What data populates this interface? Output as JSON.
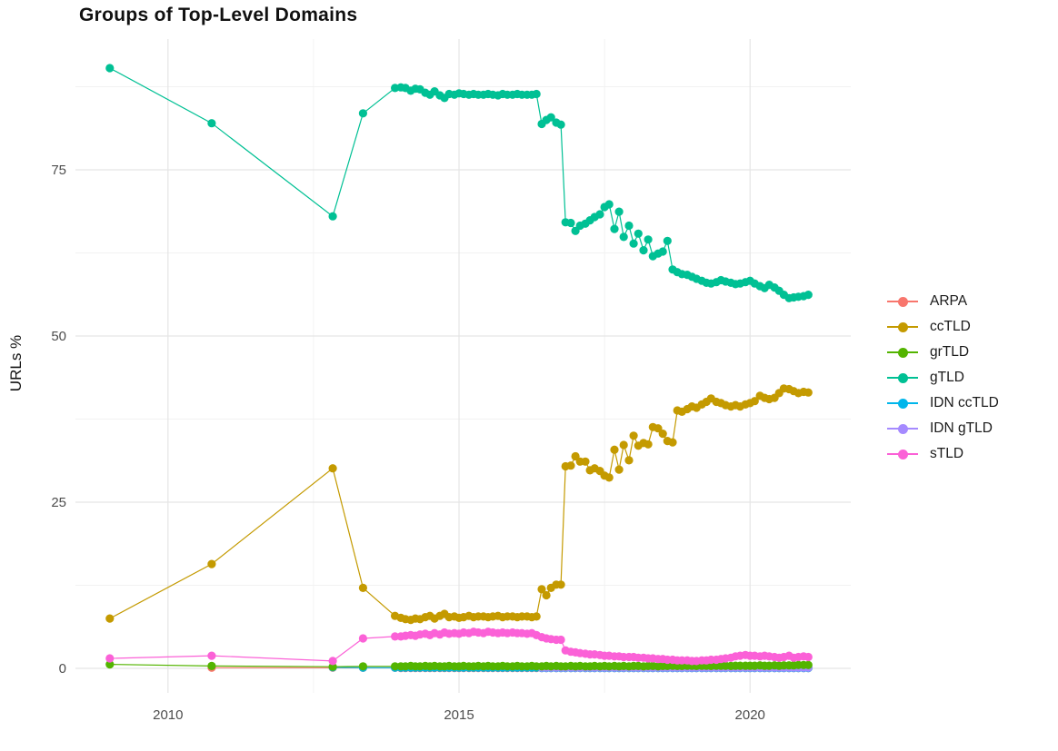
{
  "title": "Groups of Top-Level Domains",
  "chart_data": {
    "type": "line",
    "title": "Groups of Top-Level Domains",
    "xlabel": "",
    "ylabel": "URLs %",
    "grid": true,
    "legend_position": "right",
    "x_ticks": [
      "2010",
      "2015",
      "2020"
    ],
    "x_tick_values": [
      2010,
      2015,
      2020
    ],
    "x_minor": [
      2012.5,
      2017.5
    ],
    "y_ticks": [
      "0",
      "25",
      "50",
      "75"
    ],
    "y_tick_values": [
      0,
      25,
      50,
      75
    ],
    "y_minor": [
      12.5,
      37.5,
      62.5,
      87.5
    ],
    "xlim": [
      2008.41,
      2021.73
    ],
    "ylim": [
      -3.69,
      94.67
    ],
    "x": [
      2009,
      2010.75,
      2012.83,
      2013.35,
      2013.9,
      2014,
      2014.08,
      2014.17,
      2014.25,
      2014.33,
      2014.42,
      2014.5,
      2014.58,
      2014.67,
      2014.75,
      2014.83,
      2014.92,
      2015,
      2015.08,
      2015.17,
      2015.25,
      2015.33,
      2015.42,
      2015.5,
      2015.58,
      2015.67,
      2015.75,
      2015.83,
      2015.92,
      2016,
      2016.08,
      2016.17,
      2016.25,
      2016.33,
      2016.42,
      2016.5,
      2016.58,
      2016.67,
      2016.75,
      2016.83,
      2016.92,
      2017,
      2017.08,
      2017.17,
      2017.25,
      2017.33,
      2017.42,
      2017.5,
      2017.58,
      2017.67,
      2017.75,
      2017.83,
      2017.92,
      2018,
      2018.08,
      2018.17,
      2018.25,
      2018.33,
      2018.42,
      2018.5,
      2018.58,
      2018.67,
      2018.75,
      2018.83,
      2018.92,
      2019,
      2019.08,
      2019.17,
      2019.25,
      2019.33,
      2019.42,
      2019.5,
      2019.58,
      2019.67,
      2019.75,
      2019.83,
      2019.92,
      2020,
      2020.08,
      2020.17,
      2020.25,
      2020.33,
      2020.42,
      2020.5,
      2020.58,
      2020.67,
      2020.75,
      2020.83,
      2020.92,
      2021
    ],
    "draw_order": [
      "ARPA",
      "IDN ccTLD",
      "IDN gTLD",
      "grTLD",
      "ccTLD",
      "gTLD",
      "sTLD"
    ],
    "series": [
      {
        "name": "ARPA",
        "color": "#F8766D",
        "values": [
          null,
          0.1,
          0.1,
          0.08,
          0.08,
          0.05,
          0.05,
          0.05,
          0.05,
          0.05,
          0.05,
          0.05,
          0.05,
          0.05,
          0.05,
          0.05,
          0.05,
          0.05,
          0.05,
          0.05,
          0.05,
          0.05,
          0.05,
          0.05,
          0.05,
          0.05,
          0.05,
          0.05,
          0.05,
          0.05,
          0.05,
          0.05,
          0.05,
          0.05,
          0.05,
          0.05,
          0.05,
          0.05,
          0.05,
          0.05,
          0.05,
          0.05,
          0.05,
          0.05,
          0.05,
          0.05,
          0.05,
          0.05,
          0.05,
          0.05,
          0.05,
          0.05,
          0.05,
          0.05,
          0.05,
          0.05,
          0.05,
          0.05,
          0.05,
          0.05,
          0.05,
          0.05,
          0.05,
          0.05,
          0.05,
          0.05,
          0.05,
          0.05,
          0.05,
          0.05,
          0.05,
          0.05,
          0.05,
          0.05,
          0.05,
          0.05,
          0.05,
          0.05,
          0.05,
          0.05,
          0.05,
          0.05,
          0.05,
          0.05,
          0.05,
          0.05,
          0.05,
          0.05,
          0.05,
          0.05
        ]
      },
      {
        "name": "ccTLD",
        "color": "#C49A00",
        "values": [
          7.5,
          15.7,
          30.1,
          12.1,
          7.9,
          7.6,
          7.4,
          7.3,
          7.5,
          7.4,
          7.7,
          7.9,
          7.5,
          7.9,
          8.2,
          7.7,
          7.8,
          7.6,
          7.7,
          7.9,
          7.7,
          7.8,
          7.8,
          7.7,
          7.8,
          7.9,
          7.7,
          7.8,
          7.8,
          7.7,
          7.8,
          7.8,
          7.7,
          7.8,
          11.9,
          11,
          12.1,
          12.6,
          12.6,
          30.4,
          30.5,
          31.9,
          31.1,
          31.1,
          29.8,
          30.1,
          29.7,
          29,
          28.7,
          32.9,
          29.9,
          33.6,
          31.3,
          35,
          33.5,
          33.9,
          33.7,
          36.3,
          36.1,
          35.3,
          34.2,
          34,
          38.8,
          38.6,
          39,
          39.4,
          39.2,
          39.7,
          40.1,
          40.6,
          40.1,
          39.9,
          39.6,
          39.4,
          39.6,
          39.4,
          39.7,
          39.9,
          40.2,
          41,
          40.7,
          40.5,
          40.7,
          41.4,
          42.1,
          42,
          41.7,
          41.4,
          41.6,
          41.5
        ]
      },
      {
        "name": "grTLD",
        "color": "#53B400",
        "values": [
          0.6,
          0.35,
          0.25,
          0.3,
          0.3,
          0.3,
          0.3,
          0.35,
          0.3,
          0.3,
          0.35,
          0.3,
          0.35,
          0.3,
          0.3,
          0.35,
          0.3,
          0.3,
          0.35,
          0.3,
          0.3,
          0.35,
          0.3,
          0.35,
          0.3,
          0.3,
          0.35,
          0.3,
          0.3,
          0.35,
          0.3,
          0.3,
          0.35,
          0.3,
          0.3,
          0.35,
          0.3,
          0.35,
          0.3,
          0.3,
          0.35,
          0.3,
          0.35,
          0.3,
          0.3,
          0.35,
          0.3,
          0.35,
          0.3,
          0.35,
          0.3,
          0.35,
          0.3,
          0.35,
          0.35,
          0.3,
          0.35,
          0.35,
          0.3,
          0.35,
          0.35,
          0.4,
          0.35,
          0.35,
          0.4,
          0.4,
          0.35,
          0.4,
          0.4,
          0.35,
          0.4,
          0.4,
          0.4,
          0.35,
          0.4,
          0.4,
          0.4,
          0.4,
          0.4,
          0.45,
          0.4,
          0.4,
          0.45,
          0.4,
          0.45,
          0.45,
          0.45,
          0.5,
          0.5,
          0.5
        ]
      },
      {
        "name": "gTLD",
        "color": "#00C094",
        "values": [
          90.3,
          82,
          68,
          83.5,
          87.3,
          87.4,
          87.3,
          86.9,
          87.2,
          87.1,
          86.6,
          86.3,
          86.8,
          86.2,
          85.8,
          86.4,
          86.3,
          86.5,
          86.4,
          86.3,
          86.4,
          86.3,
          86.3,
          86.4,
          86.3,
          86.2,
          86.4,
          86.3,
          86.3,
          86.4,
          86.3,
          86.3,
          86.3,
          86.4,
          81.9,
          82.5,
          82.9,
          82.1,
          81.8,
          67.1,
          67,
          65.8,
          66.6,
          66.9,
          67.4,
          67.9,
          68.3,
          69.4,
          69.8,
          66.1,
          68.7,
          64.9,
          66.6,
          63.9,
          65.4,
          62.9,
          64.5,
          62,
          62.4,
          62.7,
          64.3,
          60,
          59.6,
          59.3,
          59.2,
          58.9,
          58.6,
          58.3,
          58,
          57.9,
          58.1,
          58.4,
          58.2,
          58,
          57.8,
          57.9,
          58.1,
          58.3,
          57.9,
          57.5,
          57.2,
          57.7,
          57.3,
          56.8,
          56.2,
          55.7,
          55.8,
          55.9,
          56,
          56.2
        ]
      },
      {
        "name": "IDN ccTLD",
        "color": "#00B6EB",
        "values": [
          null,
          null,
          0.15,
          0.1,
          0.1,
          0.1,
          0.1,
          0.1,
          0.1,
          0.1,
          0.1,
          0.1,
          0.1,
          0.1,
          0.1,
          0.1,
          0.1,
          0.1,
          0.1,
          0.1,
          0.1,
          0.1,
          0.1,
          0.1,
          0.1,
          0.1,
          0.1,
          0.1,
          0.1,
          0.1,
          0.1,
          0.1,
          0.1,
          0.1,
          0.05,
          0.05,
          0.05,
          0.05,
          0.05,
          0.05,
          0.05,
          0.05,
          0.05,
          0.05,
          0.05,
          0.05,
          0.05,
          0.05,
          0.05,
          0.05,
          0.05,
          0.05,
          0.05,
          0.05,
          0.05,
          0.05,
          0.05,
          0.05,
          0.05,
          0.05,
          0.05,
          0.05,
          0.05,
          0.05,
          0.05,
          0.05,
          0.05,
          0.05,
          0.05,
          0.05,
          0.05,
          0.05,
          0.05,
          0.05,
          0.05,
          0.05,
          0.05,
          0.05,
          0.05,
          0.05,
          0.05,
          0.05,
          0.05,
          0.05,
          0.05,
          0.05,
          0.05,
          0.05,
          0.05,
          0.05
        ]
      },
      {
        "name": "IDN gTLD",
        "color": "#A58AFF",
        "values": [
          null,
          null,
          null,
          null,
          null,
          null,
          null,
          null,
          null,
          null,
          null,
          null,
          null,
          null,
          null,
          null,
          null,
          null,
          null,
          null,
          null,
          null,
          null,
          null,
          null,
          null,
          null,
          null,
          null,
          null,
          null,
          null,
          null,
          null,
          0.1,
          0.1,
          0.1,
          0.1,
          0.1,
          0.1,
          0.1,
          0.1,
          0.1,
          0.1,
          0.1,
          0.1,
          0.1,
          0.1,
          0.1,
          0.1,
          0.1,
          0.1,
          0.1,
          0.1,
          0.1,
          0.1,
          0.1,
          0.1,
          0.1,
          0.1,
          0.1,
          0.1,
          0.1,
          0.1,
          0.1,
          0.1,
          0.1,
          0.1,
          0.1,
          0.1,
          0.1,
          0.1,
          0.1,
          0.1,
          0.1,
          0.1,
          0.1,
          0.1,
          0.1,
          0.1,
          0.1,
          0.1,
          0.1,
          0.1,
          0.1,
          0.1,
          0.1,
          0.1,
          0.1,
          0.1
        ]
      },
      {
        "name": "sTLD",
        "color": "#FB61D7",
        "values": [
          1.5,
          1.9,
          1.1,
          4.5,
          4.8,
          4.8,
          4.9,
          5,
          4.9,
          5.1,
          5.2,
          5,
          5.3,
          5.1,
          5.4,
          5.2,
          5.3,
          5.2,
          5.4,
          5.3,
          5.5,
          5.4,
          5.3,
          5.5,
          5.4,
          5.3,
          5.4,
          5.3,
          5.4,
          5.3,
          5.3,
          5.2,
          5.3,
          5,
          4.7,
          4.5,
          4.4,
          4.3,
          4.3,
          2.7,
          2.5,
          2.4,
          2.3,
          2.2,
          2.1,
          2.1,
          2,
          1.9,
          1.9,
          1.8,
          1.8,
          1.7,
          1.7,
          1.7,
          1.6,
          1.6,
          1.5,
          1.5,
          1.4,
          1.4,
          1.3,
          1.3,
          1.2,
          1.2,
          1.2,
          1.1,
          1.1,
          1.2,
          1.2,
          1.3,
          1.3,
          1.4,
          1.5,
          1.6,
          1.8,
          1.9,
          2,
          1.9,
          1.9,
          1.8,
          1.9,
          1.8,
          1.7,
          1.6,
          1.7,
          1.9,
          1.6,
          1.7,
          1.8,
          1.7
        ]
      }
    ]
  }
}
